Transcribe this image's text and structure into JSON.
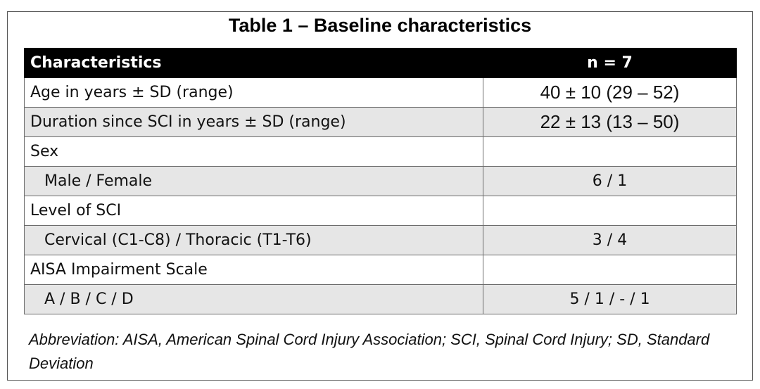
{
  "title": "Table 1 – Baseline characteristics",
  "header": {
    "col1": "Characteristics",
    "col2": "n = 7"
  },
  "rows": [
    {
      "label": "Age in years ± SD (range)",
      "value": "40 ± 10 (29 – 52)"
    },
    {
      "label": "Duration since SCI in years ± SD (range)",
      "value": "22 ± 13 (13 – 50)"
    },
    {
      "label": "Sex",
      "value": ""
    },
    {
      "label": "Male / Female",
      "value": "6 / 1"
    },
    {
      "label": "Level of SCI",
      "value": ""
    },
    {
      "label": "Cervical (C1-C8) / Thoracic (T1-T6)",
      "value": "3 / 4"
    },
    {
      "label": "AISA Impairment Scale",
      "value": ""
    },
    {
      "label": "A / B / C / D",
      "value": "5 / 1 / - / 1"
    }
  ],
  "footnote": "Abbreviation: AISA, American Spinal Cord Injury Association; SCI, Spinal Cord Injury; SD, Standard Deviation"
}
